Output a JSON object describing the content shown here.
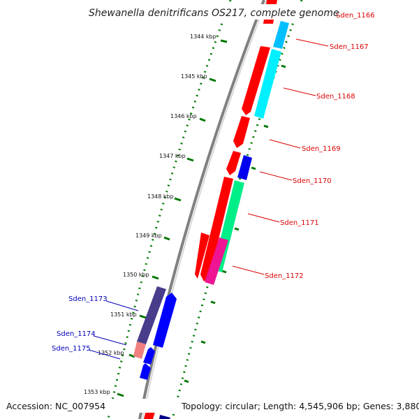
{
  "title": "Shewanella denitrificans OS217, complete genome",
  "footer": {
    "accession": "Accession: NC_007954",
    "topology": "Topology: circular; Length: 4,545,906 bp; Genes: 3,880"
  },
  "ticks": [
    "1344 kbp",
    "1345 kbp",
    "1346 kbp",
    "1347 kbp",
    "1348 kbp",
    "1349 kbp",
    "1350 kbp",
    "1351 kbp",
    "1352 kbp",
    "1353 kbp"
  ],
  "genes_right": [
    {
      "label": "Sden_1166",
      "color": "#dd0000"
    },
    {
      "label": "Sden_1167",
      "color": "#dd0000"
    },
    {
      "label": "Sden_1168",
      "color": "#dd0000"
    },
    {
      "label": "Sden_1169",
      "color": "#dd0000"
    },
    {
      "label": "Sden_1170",
      "color": "#dd0000"
    },
    {
      "label": "Sden_1171",
      "color": "#dd0000"
    },
    {
      "label": "Sden_1172",
      "color": "#dd0000"
    }
  ],
  "genes_left": [
    {
      "label": "Sden_1173",
      "color": "#0000bb"
    },
    {
      "label": "Sden_1174",
      "color": "#0000bb"
    },
    {
      "label": "Sden_1175",
      "color": "#0000bb"
    }
  ],
  "colors": {
    "forward_cds": "#ff0000",
    "reverse_cds": "#0000ee",
    "backbone": "#808080",
    "ticks": "#007700",
    "cog_cyan": "#00e5ee",
    "cog_green": "#00ee88",
    "cog_magenta": "#ee1493",
    "cog_blue": "#0000ff",
    "cog_purple": "#483d8b",
    "cog_pink": "#f08080"
  }
}
